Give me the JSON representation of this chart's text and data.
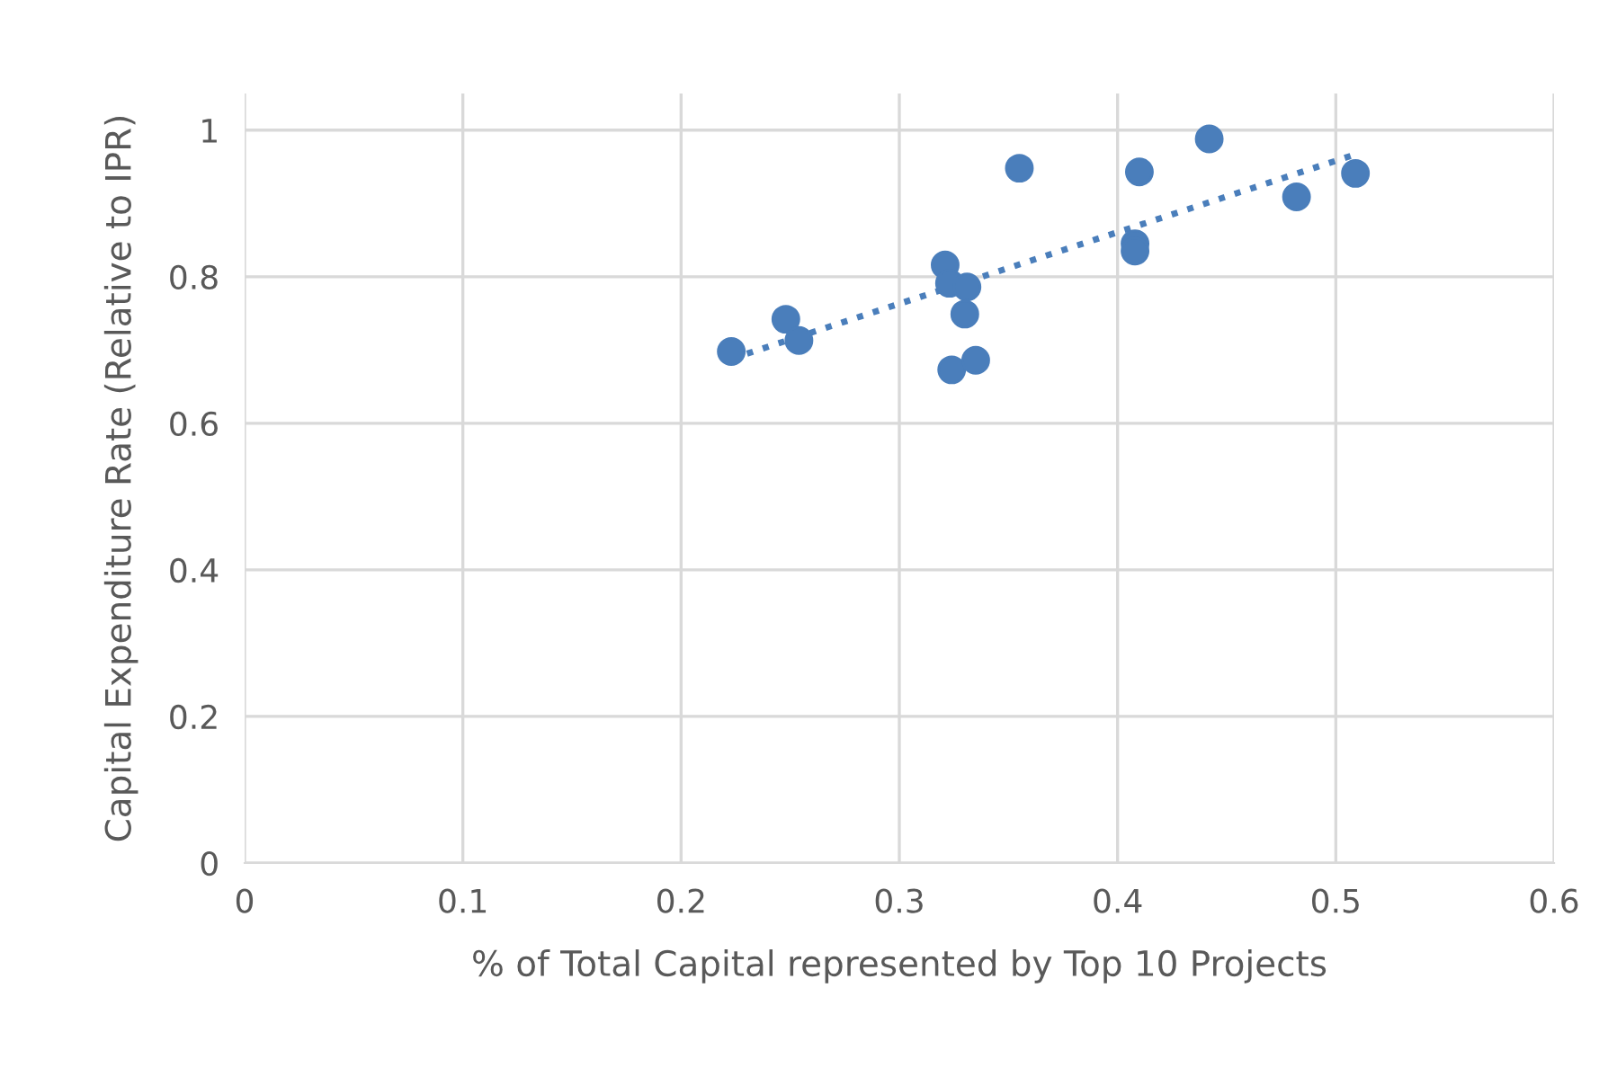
{
  "chart_data": {
    "type": "scatter",
    "xlabel": "% of Total Capital represented by Top 10 Projects",
    "ylabel": "Capital Expenditure Rate (Relative to IPR)",
    "xlim": [
      0,
      0.6
    ],
    "xticks": [
      0,
      0.1,
      0.2,
      0.3,
      0.4,
      0.5,
      0.6
    ],
    "ylim": [
      0,
      1.05
    ],
    "yticks": [
      0,
      0.2,
      0.4,
      0.6,
      0.8,
      1
    ],
    "grid": true,
    "series": [
      {
        "marker": "circle",
        "color": "#4a7ebb",
        "x": [
          0.223,
          0.248,
          0.254,
          0.321,
          0.323,
          0.331,
          0.33,
          0.324,
          0.335,
          0.355,
          0.408,
          0.408,
          0.41,
          0.442,
          0.482,
          0.509
        ],
        "values": [
          0.698,
          0.742,
          0.713,
          0.816,
          0.791,
          0.786,
          0.749,
          0.673,
          0.686,
          0.948,
          0.845,
          0.835,
          0.943,
          0.988,
          0.909,
          0.941
        ]
      },
      {
        "type": "line",
        "marker": "none",
        "color": "#4a7ebb",
        "line_style": "dotted",
        "x": [
          0.223,
          0.508
        ],
        "values": [
          0.688,
          0.966
        ]
      }
    ]
  }
}
